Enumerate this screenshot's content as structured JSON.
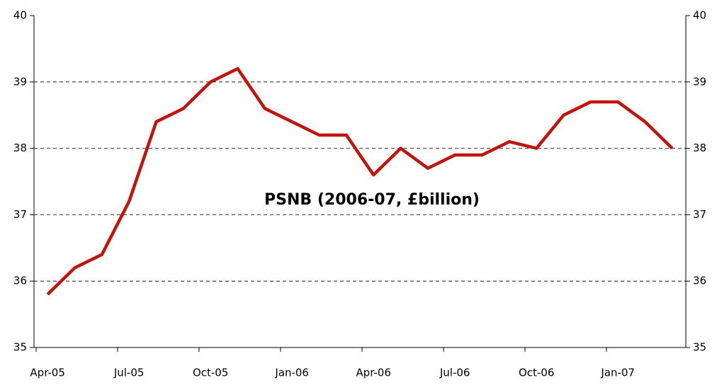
{
  "chart_data": {
    "type": "line",
    "title": "PSNB (2006-07, £billion)",
    "categories": [
      "Apr-05",
      null,
      null,
      "Jul-05",
      null,
      null,
      "Oct-05",
      null,
      null,
      "Jan-06",
      null,
      null,
      "Apr-06",
      null,
      null,
      "Jul-06",
      null,
      null,
      "Oct-06",
      null,
      null,
      "Jan-07",
      null,
      null
    ],
    "series": [
      {
        "name": "PSNB",
        "color": "#c0140c",
        "values": [
          35.8,
          36.2,
          36.4,
          37.2,
          38.4,
          38.6,
          39.0,
          39.2,
          38.6,
          38.4,
          38.2,
          38.2,
          37.6,
          38.0,
          37.7,
          37.9,
          37.9,
          38.1,
          38.0,
          38.5,
          38.7,
          38.7,
          38.4,
          38.0
        ]
      }
    ],
    "ylim": [
      35,
      40
    ],
    "yticks": [
      35,
      36,
      37,
      38,
      39,
      40
    ],
    "y2lim": [
      35,
      40
    ],
    "y2ticks": [
      35,
      36,
      37,
      38,
      39,
      40
    ],
    "grid": true
  }
}
